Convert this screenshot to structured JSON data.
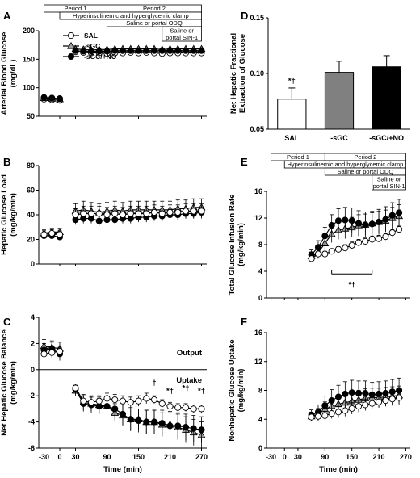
{
  "colors": {
    "ink": "#000000",
    "sal_fill": "#ffffff",
    "sgc_fill": "#a0a0a0",
    "sgcno_fill": "#000000",
    "bar_sal": "#ffffff",
    "bar_sgc": "#808080",
    "bar_sgcno": "#000000"
  },
  "protocol": {
    "period1": "Period 1",
    "period2": "Period 2",
    "clamp": "Hyperinsulinemic and hyperglycemic clamp",
    "odq": "Saline or portal ODQ",
    "sin1_line1": "Saline or",
    "sin1_line2": "portal SIN-1"
  },
  "legend": {
    "sal": "SAL",
    "sgc": "-sGC",
    "sgcno": "-sGC/+NO"
  },
  "chart_data": [
    {
      "id": "A",
      "type": "line",
      "ylabel": "Arterial Blood Glucose",
      "ylabel2": "(mg/dL)",
      "ylim": [
        50,
        200
      ],
      "yticks": [
        50,
        100,
        150,
        200
      ],
      "xlim": [
        -40,
        280
      ],
      "xticks": [
        -30,
        0,
        30,
        90,
        150,
        210,
        270
      ],
      "show_xticklabels": false,
      "x": [
        -30,
        -15,
        0,
        15,
        30,
        45,
        60,
        75,
        90,
        105,
        120,
        135,
        150,
        165,
        180,
        195,
        210,
        225,
        240,
        255,
        270
      ],
      "series": [
        {
          "name": "SAL",
          "marker": "circle-open",
          "values": [
            80,
            79,
            78,
            null,
            163,
            162,
            161,
            161,
            160,
            161,
            161,
            162,
            161,
            162,
            161,
            160,
            161,
            161,
            161,
            161,
            161
          ]
        },
        {
          "name": "-sGC",
          "marker": "triangle",
          "values": [
            82,
            81,
            80,
            null,
            168,
            167,
            166,
            167,
            167,
            168,
            168,
            168,
            168,
            168,
            168,
            167,
            168,
            168,
            168,
            168,
            168
          ]
        },
        {
          "name": "-sGC/+NO",
          "marker": "circle-filled",
          "values": [
            83,
            82,
            81,
            null,
            165,
            164,
            164,
            164,
            164,
            165,
            165,
            165,
            165,
            165,
            165,
            165,
            165,
            165,
            165,
            165,
            165
          ]
        }
      ]
    },
    {
      "id": "B",
      "type": "line",
      "ylabel": "Hepatic Glucose Load",
      "ylabel2": "(mg/kg/min)",
      "ylim": [
        0,
        80
      ],
      "yticks": [
        0,
        20,
        40,
        60,
        80
      ],
      "xlim": [
        -40,
        280
      ],
      "xticks": [
        -30,
        0,
        30,
        90,
        150,
        210,
        270
      ],
      "show_xticklabels": false,
      "x": [
        -30,
        -15,
        0,
        15,
        30,
        45,
        60,
        75,
        90,
        105,
        120,
        135,
        150,
        165,
        180,
        195,
        210,
        225,
        240,
        255,
        270
      ],
      "series": [
        {
          "name": "SAL",
          "marker": "circle-open",
          "values": [
            24,
            25,
            24,
            null,
            40,
            41,
            41,
            41,
            40,
            41,
            40,
            41,
            41,
            41,
            42,
            41,
            42,
            42,
            43,
            43,
            43
          ],
          "err": [
            3,
            3,
            3,
            null,
            5,
            6,
            6,
            6,
            6,
            6,
            6,
            6,
            6,
            6,
            6,
            6,
            6,
            6,
            6,
            6,
            6
          ]
        },
        {
          "name": "-sGC",
          "marker": "triangle",
          "values": [
            25,
            26,
            26,
            null,
            43,
            44,
            43,
            42,
            43,
            44,
            43,
            44,
            44,
            44,
            44,
            44,
            44,
            45,
            45,
            46,
            46
          ],
          "err": [
            3,
            3,
            3,
            null,
            6,
            7,
            7,
            7,
            7,
            7,
            7,
            7,
            7,
            7,
            7,
            7,
            7,
            7,
            7,
            7,
            7
          ]
        },
        {
          "name": "-sGC/+NO",
          "marker": "circle-filled",
          "values": [
            23,
            23,
            22,
            null,
            36,
            37,
            37,
            35,
            36,
            36,
            37,
            37,
            38,
            38,
            39,
            39,
            40,
            40,
            41,
            41,
            42
          ],
          "err": [
            2,
            2,
            2,
            null,
            4,
            4,
            4,
            4,
            4,
            4,
            4,
            4,
            4,
            4,
            4,
            4,
            4,
            4,
            4,
            4,
            4
          ]
        }
      ]
    },
    {
      "id": "C",
      "type": "line",
      "ylabel": "Net Hepatic Glucose Balance",
      "ylabel2": "(mg/kg/min)",
      "ylim": [
        -6,
        4
      ],
      "yticks": [
        -6,
        -4,
        -2,
        0,
        2,
        4
      ],
      "xlim": [
        -40,
        280
      ],
      "xticks": [
        -30,
        0,
        30,
        90,
        150,
        210,
        270
      ],
      "show_xticklabels": true,
      "xlabel": "Time (min)",
      "zero_line": true,
      "annotations": [
        "Output",
        "Uptake"
      ],
      "sig_marks": [
        {
          "x": 180,
          "y": -1.2,
          "text": "†"
        },
        {
          "x": 210,
          "y": -1.8,
          "text": "*†"
        },
        {
          "x": 240,
          "y": -1.6,
          "text": "*†"
        },
        {
          "x": 270,
          "y": -1.8,
          "text": "*†"
        }
      ],
      "x": [
        -30,
        -15,
        0,
        15,
        30,
        45,
        60,
        75,
        90,
        105,
        120,
        135,
        150,
        165,
        180,
        195,
        210,
        225,
        240,
        255,
        270
      ],
      "series": [
        {
          "name": "SAL",
          "marker": "circle-open",
          "values": [
            1.2,
            1.3,
            1.4,
            null,
            -1.4,
            -2.4,
            -2.5,
            -2.4,
            -2.2,
            -2.3,
            -2.4,
            -2.5,
            -2.4,
            -2.2,
            -2.3,
            -2.6,
            -2.8,
            -2.9,
            -2.9,
            -3.0,
            -3.0
          ],
          "err": [
            0.4,
            0.4,
            0.4,
            null,
            0.3,
            0.4,
            0.4,
            0.4,
            0.4,
            0.4,
            0.4,
            0.4,
            0.4,
            0.4,
            0.3,
            0.3,
            0.3,
            0.3,
            0.3,
            0.3,
            0.3
          ]
        },
        {
          "name": "-sGC",
          "marker": "triangle",
          "values": [
            1.8,
            1.7,
            1.6,
            null,
            -1.6,
            -2.5,
            -2.6,
            -2.7,
            -2.8,
            -3.3,
            -3.5,
            -3.8,
            -3.8,
            -4.0,
            -4.0,
            -4.2,
            -4.2,
            -4.4,
            -4.6,
            -4.8,
            -5.0
          ],
          "err": [
            0.5,
            0.5,
            0.5,
            null,
            0.4,
            0.6,
            0.6,
            0.6,
            0.7,
            0.7,
            0.8,
            0.8,
            0.8,
            0.9,
            0.9,
            0.9,
            1.0,
            1.0,
            1.0,
            1.0,
            1.0
          ]
        },
        {
          "name": "-sGC/+NO",
          "marker": "circle-filled",
          "values": [
            1.5,
            1.6,
            1.2,
            null,
            -1.5,
            -2.6,
            -2.7,
            -2.8,
            -2.8,
            -3.0,
            -3.4,
            -3.8,
            -3.9,
            -4.0,
            -4.0,
            -4.1,
            -4.3,
            -4.3,
            -4.4,
            -4.5,
            -4.6
          ],
          "err": [
            0.5,
            0.5,
            0.5,
            null,
            0.4,
            0.6,
            0.6,
            0.6,
            0.7,
            0.8,
            0.8,
            0.9,
            0.9,
            0.9,
            0.9,
            1.0,
            1.0,
            1.0,
            1.0,
            1.0,
            1.0
          ]
        }
      ]
    },
    {
      "id": "D",
      "type": "bar",
      "ylabel": "Net Hepatic Fractional",
      "ylabel2": "Extraction of Glucose",
      "ylim": [
        0.05,
        0.15
      ],
      "yticks": [
        0.05,
        0.1,
        0.15
      ],
      "ytick_labels": [
        "0.05",
        "0.10",
        "0.15"
      ],
      "categories": [
        "SAL",
        "-sGC",
        "-sGC/+NO"
      ],
      "values": [
        0.077,
        0.101,
        0.106
      ],
      "err": [
        0.01,
        0.01,
        0.01
      ],
      "sig_marks": [
        "*†",
        "",
        ""
      ]
    },
    {
      "id": "E",
      "type": "line",
      "ylabel": "Total Glucose Infusion Rate",
      "ylabel2": "(mg/kg/min)",
      "ylim": [
        0,
        16
      ],
      "yticks": [
        0,
        4,
        8,
        12,
        16
      ],
      "xlim": [
        -40,
        280
      ],
      "xticks": [
        -30,
        0,
        30,
        90,
        150,
        210,
        270
      ],
      "show_xticklabels": false,
      "bracket": {
        "x1": 105,
        "x2": 195,
        "y": 3.6,
        "label": "*†"
      },
      "x": [
        60,
        75,
        90,
        105,
        120,
        135,
        150,
        165,
        180,
        195,
        210,
        225,
        240,
        255
      ],
      "series": [
        {
          "name": "SAL",
          "marker": "circle-open",
          "values": [
            5.9,
            6.6,
            6.6,
            7.0,
            7.3,
            7.5,
            7.9,
            8.3,
            8.5,
            8.8,
            8.9,
            9.2,
            9.8,
            10.3
          ],
          "err": [
            0.4,
            0.4,
            0.4,
            0.4,
            0.4,
            0.5,
            0.5,
            0.5,
            0.5,
            0.5,
            0.5,
            0.5,
            0.5,
            0.5
          ]
        },
        {
          "name": "-sGC",
          "marker": "triangle",
          "values": [
            6.3,
            6.8,
            8.2,
            9.6,
            10.2,
            10.4,
            10.6,
            10.9,
            11.0,
            11.2,
            11.4,
            11.6,
            12.0,
            12.3
          ],
          "err": [
            0.6,
            0.9,
            1.1,
            1.3,
            1.4,
            1.5,
            1.5,
            1.6,
            1.6,
            1.6,
            1.6,
            1.6,
            1.6,
            1.7
          ]
        },
        {
          "name": "-sGC/+NO",
          "marker": "circle-filled",
          "values": [
            6.5,
            7.6,
            9.3,
            10.9,
            11.6,
            11.7,
            11.6,
            11.2,
            11.0,
            11.1,
            11.4,
            11.8,
            12.4,
            12.8
          ],
          "err": [
            0.7,
            1.0,
            1.3,
            1.6,
            1.8,
            1.9,
            1.9,
            1.9,
            1.9,
            1.9,
            1.9,
            1.9,
            1.9,
            2.0
          ]
        }
      ]
    },
    {
      "id": "F",
      "type": "line",
      "ylabel": "Nonhepatic Glucose Uptake",
      "ylabel2": "(mg/kg/min)",
      "ylim": [
        0,
        16
      ],
      "yticks": [
        0,
        4,
        8,
        12,
        16
      ],
      "xlim": [
        -40,
        280
      ],
      "xticks": [
        -30,
        0,
        30,
        90,
        150,
        210,
        270
      ],
      "show_xticklabels": true,
      "xlabel": "Time (min)",
      "x": [
        60,
        75,
        90,
        105,
        120,
        135,
        150,
        165,
        180,
        195,
        210,
        225,
        240,
        255
      ],
      "series": [
        {
          "name": "SAL",
          "marker": "circle-open",
          "values": [
            4.3,
            4.4,
            4.5,
            4.8,
            5.0,
            5.2,
            5.5,
            5.8,
            6.0,
            6.2,
            6.4,
            6.6,
            6.8,
            7.0
          ],
          "err": [
            0.5,
            0.6,
            0.6,
            0.7,
            0.8,
            0.8,
            0.8,
            0.8,
            0.8,
            0.8,
            0.8,
            0.8,
            0.8,
            0.8
          ]
        },
        {
          "name": "-sGC",
          "marker": "triangle",
          "values": [
            4.4,
            4.7,
            5.4,
            5.8,
            6.1,
            6.3,
            6.5,
            6.7,
            6.9,
            7.0,
            7.0,
            7.1,
            7.2,
            7.3
          ],
          "err": [
            0.6,
            0.8,
            1.0,
            1.1,
            1.2,
            1.2,
            1.2,
            1.3,
            1.3,
            1.3,
            1.3,
            1.3,
            1.3,
            1.3
          ]
        },
        {
          "name": "-sGC/+NO",
          "marker": "circle-filled",
          "values": [
            4.6,
            5.0,
            5.9,
            6.6,
            7.1,
            7.5,
            7.7,
            7.6,
            7.6,
            7.4,
            7.5,
            7.6,
            7.8,
            8.0
          ],
          "err": [
            0.7,
            1.0,
            1.3,
            1.5,
            1.6,
            1.7,
            1.7,
            1.7,
            1.7,
            1.7,
            1.7,
            1.7,
            1.7,
            1.7
          ]
        }
      ]
    }
  ]
}
